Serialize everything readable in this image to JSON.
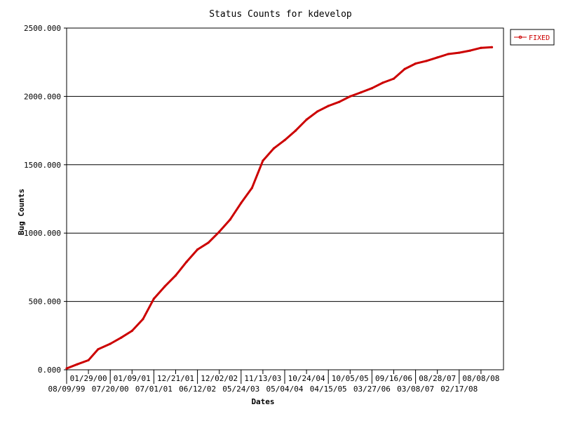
{
  "chart_data": {
    "type": "line",
    "title": "Status Counts for kdevelop",
    "xlabel": "Dates",
    "ylabel": "Bug Counts",
    "ylim": [
      0,
      2500
    ],
    "y_ticks": [
      "0.000",
      "500.000",
      "1000.000",
      "1500.000",
      "2000.000",
      "2500.000"
    ],
    "x_ticks_upper": [
      "01/29/00",
      "01/09/01",
      "12/21/01",
      "12/02/02",
      "11/13/03",
      "10/24/04",
      "10/05/05",
      "09/16/06",
      "08/28/07",
      "08/08/08"
    ],
    "x_ticks_lower": [
      "08/09/99",
      "07/20/00",
      "07/01/01",
      "06/12/02",
      "05/24/03",
      "05/04/04",
      "04/15/05",
      "03/27/06",
      "03/08/07",
      "02/17/08"
    ],
    "grid": "horizontal",
    "legend_position": "top-right",
    "series": [
      {
        "name": "FIXED",
        "color": "#cc0000",
        "x": [
          "08/09/99",
          "11/01/99",
          "01/29/00",
          "04/15/00",
          "07/20/00",
          "10/15/00",
          "01/09/01",
          "04/05/01",
          "07/01/01",
          "09/26/01",
          "12/21/01",
          "03/18/02",
          "06/12/02",
          "09/07/02",
          "12/02/02",
          "02/27/03",
          "05/24/03",
          "08/18/03",
          "11/13/03",
          "02/08/04",
          "05/04/04",
          "07/30/04",
          "10/24/04",
          "01/19/05",
          "04/15/05",
          "07/11/05",
          "10/05/05",
          "12/31/05",
          "03/27/06",
          "06/22/06",
          "09/16/06",
          "12/12/06",
          "03/08/07",
          "06/03/07",
          "08/28/07",
          "11/23/07",
          "02/17/08",
          "05/14/08",
          "08/08/08",
          "11/03/08"
        ],
        "values": [
          10,
          40,
          70,
          150,
          190,
          235,
          285,
          370,
          520,
          610,
          690,
          790,
          880,
          930,
          1010,
          1100,
          1220,
          1330,
          1530,
          1620,
          1680,
          1750,
          1830,
          1890,
          1930,
          1960,
          2000,
          2030,
          2060,
          2100,
          2130,
          2200,
          2240,
          2260,
          2285,
          2310,
          2320,
          2335,
          2355,
          2360
        ]
      }
    ]
  }
}
